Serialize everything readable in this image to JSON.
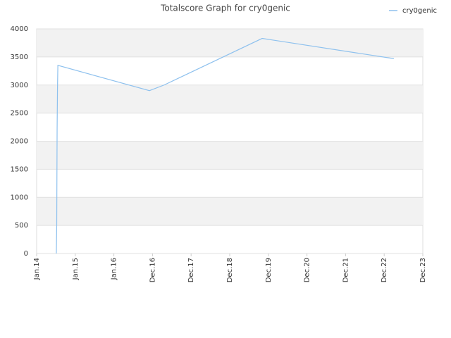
{
  "chart_data": {
    "type": "line",
    "title": "Totalscore Graph for cry0genic",
    "x": [
      0.51,
      0.52,
      0.53,
      0.54,
      0.55,
      2.92,
      3.3,
      5.84,
      9.25
    ],
    "series": [
      {
        "name": "cry0genic",
        "color": "#8ec1ee",
        "values": [
          0,
          500,
          2200,
          2950,
          3350,
          2900,
          3000,
          3830,
          3470
        ]
      }
    ],
    "xlim": [
      0,
      10
    ],
    "xticks": [
      {
        "value": 0,
        "label": "Jan.14"
      },
      {
        "value": 1,
        "label": "Jan.15"
      },
      {
        "value": 2,
        "label": "Jan.16"
      },
      {
        "value": 3,
        "label": "Dec.16"
      },
      {
        "value": 4,
        "label": "Dec.17"
      },
      {
        "value": 5,
        "label": "Dec.18"
      },
      {
        "value": 6,
        "label": "Dec.19"
      },
      {
        "value": 7,
        "label": "Dec.20"
      },
      {
        "value": 8,
        "label": "Dec.21"
      },
      {
        "value": 9,
        "label": "Dec.22"
      },
      {
        "value": 10,
        "label": "Dec.23"
      }
    ],
    "ylim": [
      0,
      4000
    ],
    "yticks": [
      0,
      500,
      1000,
      1500,
      2000,
      2500,
      3000,
      3500,
      4000
    ],
    "grid": true,
    "legend": "top-right"
  }
}
